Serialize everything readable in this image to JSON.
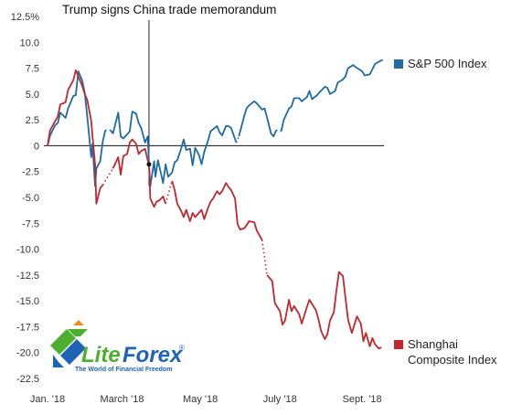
{
  "chart_data": {
    "type": "line",
    "title": "",
    "xlabel": "",
    "ylabel": "",
    "x_start": "2018-01-02",
    "x_end": "2018-09-21",
    "ylim": [
      -22.5,
      12.5
    ],
    "yticks": [
      {
        "value": 12.5,
        "label": "12.5%"
      },
      {
        "value": 10.0,
        "label": "10.0"
      },
      {
        "value": 7.5,
        "label": "7.5"
      },
      {
        "value": 5.0,
        "label": "5.0"
      },
      {
        "value": 2.5,
        "label": "2.5"
      },
      {
        "value": 0,
        "label": "0"
      },
      {
        "value": -2.5,
        "label": "-2.5"
      },
      {
        "value": -5.0,
        "label": "-5.0"
      },
      {
        "value": -7.5,
        "label": "-7.5"
      },
      {
        "value": -10.0,
        "label": "-10.0"
      },
      {
        "value": -12.5,
        "label": "-12.5"
      },
      {
        "value": -15.0,
        "label": "-15.0"
      },
      {
        "value": -17.5,
        "label": "-17.5"
      },
      {
        "value": -20.0,
        "label": "-20.0"
      },
      {
        "value": -22.5,
        "label": "-22.5"
      }
    ],
    "xticks": [
      {
        "date": "2018-01-02",
        "label": "Jan. '18"
      },
      {
        "date": "2018-03-01",
        "label": "March '18"
      },
      {
        "date": "2018-05-01",
        "label": "May '18"
      },
      {
        "date": "2018-07-02",
        "label": "July '18"
      },
      {
        "date": "2018-09-04",
        "label": "Sept. '18"
      }
    ],
    "grid": false,
    "annotation": {
      "label": "Trump signs China trade memorandum",
      "date": "2018-03-22"
    },
    "series": [
      {
        "name": "S&P 500 Index",
        "color": "#1f6aa5",
        "points": [
          [
            "2018-01-02",
            0.0
          ],
          [
            "2018-01-04",
            1.0
          ],
          [
            "2018-01-08",
            2.0
          ],
          [
            "2018-01-10",
            2.2
          ],
          [
            "2018-01-12",
            3.2
          ],
          [
            "2018-01-16",
            2.7
          ],
          [
            "2018-01-18",
            3.6
          ],
          [
            "2018-01-22",
            4.8
          ],
          [
            "2018-01-24",
            4.9
          ],
          [
            "2018-01-26",
            7.2
          ],
          [
            "2018-01-29",
            6.3
          ],
          [
            "2018-01-31",
            5.1
          ],
          [
            "2018-02-02",
            2.8
          ],
          [
            "2018-02-05",
            -1.1
          ],
          [
            "2018-02-06",
            0.2
          ],
          [
            "2018-02-08",
            -3.9
          ],
          [
            "2018-02-09",
            -2.2
          ],
          [
            "2018-02-12",
            -1.5
          ],
          [
            "2018-02-14",
            0.4
          ],
          [
            "2018-02-16",
            1.5
          ],
          [
            "2018-02-20",
            1.5
          ],
          [
            "2018-02-22",
            1.2
          ],
          [
            "2018-02-26",
            3.2
          ],
          [
            "2018-02-28",
            0.9
          ],
          [
            "2018-03-02",
            0.7
          ],
          [
            "2018-03-05",
            1.1
          ],
          [
            "2018-03-07",
            1.4
          ],
          [
            "2018-03-09",
            3.3
          ],
          [
            "2018-03-12",
            3.1
          ],
          [
            "2018-03-14",
            2.2
          ],
          [
            "2018-03-16",
            1.7
          ],
          [
            "2018-03-19",
            0.3
          ],
          [
            "2018-03-21",
            0.9
          ],
          [
            "2018-03-22",
            -1.8
          ],
          [
            "2018-03-23",
            -3.9
          ],
          [
            "2018-03-26",
            -1.5
          ],
          [
            "2018-03-27",
            -3.0
          ],
          [
            "2018-03-29",
            -1.4
          ],
          [
            "2018-04-02",
            -3.6
          ],
          [
            "2018-04-04",
            -1.8
          ],
          [
            "2018-04-06",
            -3.0
          ],
          [
            "2018-04-09",
            -2.6
          ],
          [
            "2018-04-11",
            -1.6
          ],
          [
            "2018-04-13",
            -1.4
          ],
          [
            "2018-04-16",
            -0.3
          ],
          [
            "2018-04-18",
            0.6
          ],
          [
            "2018-04-20",
            -0.4
          ],
          [
            "2018-04-23",
            -0.3
          ],
          [
            "2018-04-25",
            -1.9
          ],
          [
            "2018-04-27",
            -0.2
          ],
          [
            "2018-04-30",
            -0.9
          ],
          [
            "2018-05-02",
            -1.8
          ],
          [
            "2018-05-04",
            -0.6
          ],
          [
            "2018-05-07",
            0.5
          ],
          [
            "2018-05-09",
            1.4
          ],
          [
            "2018-05-11",
            1.6
          ],
          [
            "2018-05-14",
            1.9
          ],
          [
            "2018-05-16",
            1.3
          ],
          [
            "2018-05-18",
            1.0
          ],
          [
            "2018-05-21",
            1.9
          ],
          [
            "2018-05-23",
            1.9
          ],
          [
            "2018-05-25",
            1.7
          ],
          [
            "2018-05-29",
            0.3
          ],
          [
            "2018-05-31",
            0.9
          ],
          [
            "2018-06-04",
            2.8
          ],
          [
            "2018-06-06",
            3.6
          ],
          [
            "2018-06-08",
            3.9
          ],
          [
            "2018-06-12",
            4.3
          ],
          [
            "2018-06-14",
            4.1
          ],
          [
            "2018-06-18",
            3.5
          ],
          [
            "2018-06-20",
            3.6
          ],
          [
            "2018-06-22",
            2.7
          ],
          [
            "2018-06-25",
            1.2
          ],
          [
            "2018-06-27",
            0.9
          ],
          [
            "2018-06-29",
            1.5
          ],
          [
            "2018-07-03",
            1.4
          ],
          [
            "2018-07-05",
            2.5
          ],
          [
            "2018-07-09",
            3.6
          ],
          [
            "2018-07-11",
            3.8
          ],
          [
            "2018-07-13",
            4.6
          ],
          [
            "2018-07-17",
            4.6
          ],
          [
            "2018-07-19",
            4.3
          ],
          [
            "2018-07-23",
            4.7
          ],
          [
            "2018-07-25",
            5.3
          ],
          [
            "2018-07-27",
            4.5
          ],
          [
            "2018-07-31",
            4.9
          ],
          [
            "2018-08-02",
            5.2
          ],
          [
            "2018-08-06",
            5.7
          ],
          [
            "2018-08-08",
            5.6
          ],
          [
            "2018-08-10",
            5.0
          ],
          [
            "2018-08-14",
            5.3
          ],
          [
            "2018-08-16",
            6.1
          ],
          [
            "2018-08-20",
            6.4
          ],
          [
            "2018-08-22",
            6.7
          ],
          [
            "2018-08-24",
            7.5
          ],
          [
            "2018-08-28",
            7.8
          ],
          [
            "2018-08-30",
            7.6
          ],
          [
            "2018-09-04",
            7.2
          ],
          [
            "2018-09-06",
            6.8
          ],
          [
            "2018-09-10",
            6.9
          ],
          [
            "2018-09-12",
            7.4
          ],
          [
            "2018-09-14",
            7.9
          ],
          [
            "2018-09-18",
            8.2
          ],
          [
            "2018-09-20",
            8.3
          ]
        ]
      },
      {
        "name": "Shanghai Composite Index",
        "color": "#c0282d",
        "points": [
          [
            "2018-01-02",
            0.0
          ],
          [
            "2018-01-04",
            1.5
          ],
          [
            "2018-01-08",
            2.4
          ],
          [
            "2018-01-10",
            2.8
          ],
          [
            "2018-01-12",
            4.0
          ],
          [
            "2018-01-16",
            4.2
          ],
          [
            "2018-01-18",
            5.4
          ],
          [
            "2018-01-22",
            6.3
          ],
          [
            "2018-01-24",
            7.3
          ],
          [
            "2018-01-26",
            6.7
          ],
          [
            "2018-01-29",
            5.8
          ],
          [
            "2018-01-31",
            5.0
          ],
          [
            "2018-02-02",
            4.4
          ],
          [
            "2018-02-05",
            2.4
          ],
          [
            "2018-02-06",
            0.9
          ],
          [
            "2018-02-08",
            -1.8
          ],
          [
            "2018-02-09",
            -5.6
          ],
          [
            "2018-02-12",
            -4.1
          ],
          [
            "2018-02-14",
            -3.8
          ],
          [
            "2018-02-22",
            -2.2
          ],
          [
            "2018-02-26",
            -1.1
          ],
          [
            "2018-02-28",
            -2.8
          ],
          [
            "2018-03-02",
            -1.0
          ],
          [
            "2018-03-05",
            -0.8
          ],
          [
            "2018-03-07",
            0.3
          ],
          [
            "2018-03-09",
            0.6
          ],
          [
            "2018-03-12",
            0.2
          ],
          [
            "2018-03-14",
            -0.8
          ],
          [
            "2018-03-16",
            -0.5
          ],
          [
            "2018-03-19",
            -0.3
          ],
          [
            "2018-03-21",
            -1.4
          ],
          [
            "2018-03-22",
            -1.8
          ],
          [
            "2018-03-23",
            -5.1
          ],
          [
            "2018-03-26",
            -5.9
          ],
          [
            "2018-03-28",
            -5.4
          ],
          [
            "2018-03-30",
            -5.3
          ],
          [
            "2018-04-02",
            -4.9
          ],
          [
            "2018-04-04",
            -5.6
          ],
          [
            "2018-04-09",
            -3.4
          ],
          [
            "2018-04-11",
            -4.3
          ],
          [
            "2018-04-13",
            -5.6
          ],
          [
            "2018-04-16",
            -6.3
          ],
          [
            "2018-04-18",
            -6.9
          ],
          [
            "2018-04-20",
            -6.2
          ],
          [
            "2018-04-23",
            -7.3
          ],
          [
            "2018-04-25",
            -6.5
          ],
          [
            "2018-04-27",
            -6.9
          ],
          [
            "2018-05-02",
            -6.2
          ],
          [
            "2018-05-04",
            -7.1
          ],
          [
            "2018-05-07",
            -6.0
          ],
          [
            "2018-05-09",
            -5.4
          ],
          [
            "2018-05-11",
            -5.1
          ],
          [
            "2018-05-14",
            -4.4
          ],
          [
            "2018-05-16",
            -4.7
          ],
          [
            "2018-05-18",
            -4.4
          ],
          [
            "2018-05-21",
            -3.6
          ],
          [
            "2018-05-23",
            -4.0
          ],
          [
            "2018-05-25",
            -4.3
          ],
          [
            "2018-05-28",
            -5.1
          ],
          [
            "2018-05-30",
            -7.6
          ],
          [
            "2018-06-01",
            -8.1
          ],
          [
            "2018-06-04",
            -8.0
          ],
          [
            "2018-06-06",
            -7.7
          ],
          [
            "2018-06-08",
            -7.3
          ],
          [
            "2018-06-12",
            -7.4
          ],
          [
            "2018-06-14",
            -8.2
          ],
          [
            "2018-06-18",
            -9.1
          ],
          [
            "2018-06-22",
            -12.5
          ],
          [
            "2018-06-26",
            -13.1
          ],
          [
            "2018-06-28",
            -15.2
          ],
          [
            "2018-07-02",
            -16.0
          ],
          [
            "2018-07-04",
            -17.3
          ],
          [
            "2018-07-06",
            -16.9
          ],
          [
            "2018-07-09",
            -14.9
          ],
          [
            "2018-07-11",
            -16.0
          ],
          [
            "2018-07-13",
            -15.5
          ],
          [
            "2018-07-17",
            -16.3
          ],
          [
            "2018-07-19",
            -17.2
          ],
          [
            "2018-07-23",
            -15.6
          ],
          [
            "2018-07-25",
            -14.9
          ],
          [
            "2018-07-27",
            -15.3
          ],
          [
            "2018-07-30",
            -15.9
          ],
          [
            "2018-08-01",
            -16.8
          ],
          [
            "2018-08-03",
            -17.9
          ],
          [
            "2018-08-06",
            -18.7
          ],
          [
            "2018-08-08",
            -18.2
          ],
          [
            "2018-08-10",
            -16.9
          ],
          [
            "2018-08-13",
            -16.1
          ],
          [
            "2018-08-15",
            -14.0
          ],
          [
            "2018-08-17",
            -12.2
          ],
          [
            "2018-08-20",
            -12.6
          ],
          [
            "2018-08-22",
            -14.7
          ],
          [
            "2018-08-24",
            -16.8
          ],
          [
            "2018-08-27",
            -18.1
          ],
          [
            "2018-08-29",
            -17.3
          ],
          [
            "2018-08-31",
            -16.5
          ],
          [
            "2018-09-03",
            -17.2
          ],
          [
            "2018-09-05",
            -18.9
          ],
          [
            "2018-09-07",
            -18.1
          ],
          [
            "2018-09-10",
            -19.4
          ],
          [
            "2018-09-12",
            -18.6
          ],
          [
            "2018-09-14",
            -19.2
          ],
          [
            "2018-09-17",
            -19.6
          ],
          [
            "2018-09-19",
            -19.5
          ]
        ]
      }
    ],
    "gaps": [
      {
        "series": 0,
        "from": "2018-02-16",
        "to": "2018-02-20"
      },
      {
        "series": 0,
        "from": "2018-05-29",
        "to": "2018-05-31"
      },
      {
        "series": 0,
        "from": "2018-06-29",
        "to": "2018-07-03"
      },
      {
        "series": 1,
        "from": "2018-02-14",
        "to": "2018-02-22"
      },
      {
        "series": 1,
        "from": "2018-04-04",
        "to": "2018-04-09"
      },
      {
        "series": 1,
        "from": "2018-06-18",
        "to": "2018-06-22"
      }
    ]
  },
  "logo": {
    "brand_left": "Lite",
    "brand_right": "Forex",
    "registered": "®",
    "tagline": "The World of Financial Freedom",
    "colors": {
      "green": "#4caf2e",
      "blue": "#1e63b5",
      "orange": "#f28a1b"
    }
  }
}
